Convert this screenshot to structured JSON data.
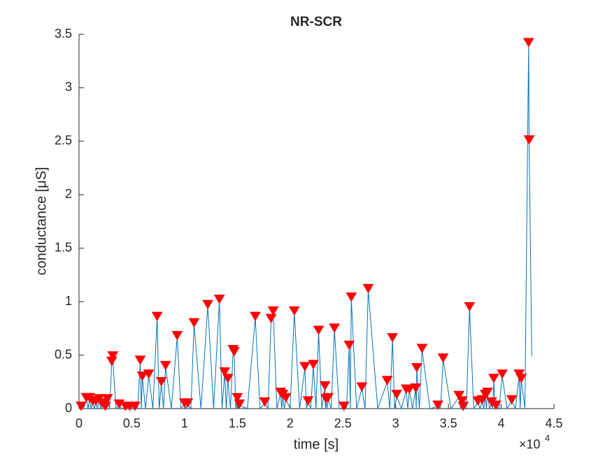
{
  "chart_data": {
    "type": "line",
    "title": "NR-SCR",
    "x_label": "time [s]",
    "y_label": "conductance [μS]",
    "x_multiplier": {
      "base": "×10",
      "power": "4"
    },
    "xlim": [
      0,
      4.5
    ],
    "xticks": [
      0,
      0.5,
      1,
      1.5,
      2,
      2.5,
      3,
      3.5,
      4,
      4.5
    ],
    "ylim": [
      0,
      3.5
    ],
    "yticks": [
      0,
      0.5,
      1,
      1.5,
      2,
      2.5,
      3,
      3.5
    ],
    "grid": false,
    "series": [
      {
        "color": "#0072BD",
        "marker": "none",
        "line": true,
        "x": [
          0,
          0.02,
          0.045,
          0.07,
          0.085,
          0.1,
          0.115,
          0.13,
          0.145,
          0.16,
          0.175,
          0.19,
          0.205,
          0.22,
          0.235,
          0.25,
          0.26,
          0.27,
          0.29,
          0.31,
          0.32,
          0.35,
          0.38,
          0.41,
          0.44,
          0.46,
          0.48,
          0.505,
          0.53,
          0.555,
          0.58,
          0.59,
          0.6,
          0.63,
          0.66,
          0.7,
          0.74,
          0.76,
          0.78,
          0.8,
          0.82,
          0.875,
          0.93,
          0.965,
          1.0,
          1.015,
          1.03,
          1.06,
          1.09,
          1.155,
          1.22,
          1.275,
          1.33,
          1.355,
          1.38,
          1.395,
          1.41,
          1.435,
          1.46,
          1.47,
          1.485,
          1.5,
          1.51,
          1.52,
          1.595,
          1.67,
          1.715,
          1.76,
          1.79,
          1.82,
          1.84,
          1.875,
          1.91,
          1.92,
          1.93,
          1.945,
          1.96,
          2.0,
          2.04,
          2.09,
          2.14,
          2.155,
          2.17,
          2.195,
          2.22,
          2.245,
          2.27,
          2.3,
          2.33,
          2.335,
          2.34,
          2.35,
          2.36,
          2.39,
          2.42,
          2.465,
          2.51,
          2.535,
          2.56,
          2.57,
          2.58,
          2.63,
          2.68,
          2.71,
          2.74,
          2.83,
          2.92,
          2.945,
          2.97,
          2.99,
          3.01,
          3.055,
          3.1,
          3.115,
          3.13,
          3.16,
          3.19,
          3.195,
          3.2,
          3.225,
          3.25,
          3.325,
          3.4,
          3.425,
          3.45,
          3.525,
          3.6,
          3.615,
          3.63,
          3.635,
          3.64,
          3.67,
          3.7,
          3.74,
          3.78,
          3.8,
          3.82,
          3.835,
          3.85,
          3.86,
          3.87,
          3.89,
          3.91,
          3.92,
          3.93,
          3.94,
          3.95,
          3.98,
          4.01,
          4.055,
          4.1,
          4.135,
          4.17,
          4.18,
          4.19,
          4.225,
          4.26,
          4.265,
          4.29
        ],
        "values": [
          0,
          0.01,
          0,
          0.09,
          0,
          0.09,
          0,
          0.06,
          0,
          0.06,
          0,
          0.08,
          0,
          0.04,
          0,
          0.01,
          0,
          0.08,
          0,
          0.43,
          0.48,
          0,
          0.03,
          0,
          0.01,
          0,
          0.01,
          0,
          0.01,
          0,
          0.44,
          0,
          0.29,
          0,
          0.31,
          0,
          0.85,
          0,
          0.24,
          0,
          0.39,
          0,
          0.67,
          0,
          0.04,
          0,
          0.04,
          0,
          0.79,
          0,
          0.96,
          0,
          1.01,
          0,
          0.33,
          0,
          0.27,
          0,
          0.54,
          0.52,
          0,
          0.09,
          0,
          0.03,
          0,
          0.85,
          0,
          0.05,
          0,
          0.83,
          0.9,
          0,
          0.14,
          0,
          0.12,
          0,
          0.09,
          0,
          0.9,
          0,
          0.38,
          0,
          0.06,
          0,
          0.4,
          0,
          0.72,
          0,
          0.2,
          0,
          0.08,
          0,
          0.09,
          0,
          0.74,
          0,
          0.01,
          0,
          0.58,
          0,
          1.03,
          0,
          0.19,
          0,
          1.11,
          0,
          0.25,
          0,
          0.65,
          0,
          0.12,
          0,
          0.17,
          0,
          0.17,
          0,
          0.18,
          0,
          0.37,
          0,
          0.55,
          0,
          0.02,
          0,
          0.46,
          0,
          0.11,
          0,
          0.06,
          0,
          0.01,
          0,
          0.94,
          0,
          0.06,
          0,
          0.07,
          0,
          0.12,
          0,
          0.14,
          0,
          0.05,
          0,
          0.27,
          0,
          0.02,
          0,
          0.31,
          0,
          0.07,
          0,
          0.31,
          0,
          0.27,
          0,
          3.41,
          2.5,
          0.49
        ]
      },
      {
        "color": "#FF0000",
        "marker": "triangle-down",
        "line": false,
        "x": [
          0.02,
          0.07,
          0.1,
          0.13,
          0.16,
          0.19,
          0.22,
          0.25,
          0.27,
          0.31,
          0.32,
          0.38,
          0.44,
          0.48,
          0.53,
          0.58,
          0.6,
          0.66,
          0.74,
          0.78,
          0.82,
          0.93,
          1.0,
          1.03,
          1.09,
          1.22,
          1.33,
          1.38,
          1.41,
          1.46,
          1.47,
          1.5,
          1.52,
          1.67,
          1.76,
          1.82,
          1.84,
          1.91,
          1.93,
          1.96,
          2.04,
          2.14,
          2.17,
          2.22,
          2.27,
          2.33,
          2.34,
          2.36,
          2.42,
          2.51,
          2.56,
          2.58,
          2.68,
          2.74,
          2.92,
          2.97,
          3.01,
          3.1,
          3.13,
          3.19,
          3.2,
          3.25,
          3.4,
          3.45,
          3.6,
          3.63,
          3.64,
          3.7,
          3.78,
          3.82,
          3.85,
          3.87,
          3.91,
          3.93,
          3.95,
          4.01,
          4.1,
          4.17,
          4.19,
          4.26,
          4.265
        ],
        "values": [
          0.01,
          0.09,
          0.09,
          0.06,
          0.06,
          0.08,
          0.04,
          0.01,
          0.08,
          0.43,
          0.48,
          0.03,
          0.01,
          0.01,
          0.01,
          0.44,
          0.29,
          0.31,
          0.85,
          0.24,
          0.39,
          0.67,
          0.04,
          0.04,
          0.79,
          0.96,
          1.01,
          0.33,
          0.27,
          0.54,
          0.52,
          0.09,
          0.03,
          0.85,
          0.05,
          0.83,
          0.9,
          0.14,
          0.12,
          0.09,
          0.9,
          0.38,
          0.06,
          0.4,
          0.72,
          0.2,
          0.08,
          0.09,
          0.74,
          0.01,
          0.58,
          1.03,
          0.19,
          1.11,
          0.25,
          0.65,
          0.12,
          0.17,
          0.17,
          0.18,
          0.37,
          0.55,
          0.02,
          0.46,
          0.11,
          0.06,
          0.01,
          0.94,
          0.06,
          0.07,
          0.12,
          0.14,
          0.05,
          0.27,
          0.02,
          0.31,
          0.07,
          0.31,
          0.27,
          3.41,
          2.5
        ]
      }
    ]
  }
}
